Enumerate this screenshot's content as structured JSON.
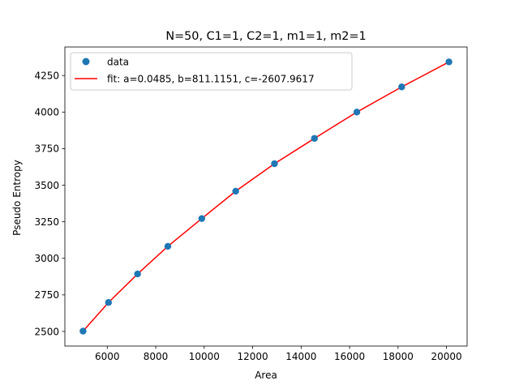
{
  "chart_data": {
    "type": "scatter",
    "title": "N=50, C1=1, C2=1, m1=1, m2=1",
    "xlabel": "Area",
    "ylabel": "Pseudo Entropy",
    "xlim": [
      4250,
      20850
    ],
    "ylim": [
      2400,
      4445
    ],
    "xticks": [
      6000,
      8000,
      10000,
      12000,
      14000,
      16000,
      18000,
      20000
    ],
    "yticks": [
      2500,
      2750,
      3000,
      3250,
      3500,
      3750,
      4000,
      4250
    ],
    "grid": false,
    "legend_position": "top-left",
    "series": [
      {
        "name": "data",
        "kind": "scatter",
        "color": "#1f77b4",
        "x": [
          5000,
          6050,
          7250,
          8500,
          9900,
          11300,
          12900,
          14550,
          16300,
          18150,
          20100
        ],
        "y": [
          2502,
          2698,
          2893,
          3082,
          3272,
          3459,
          3647,
          3820,
          4000,
          4172,
          4343
        ]
      },
      {
        "name": "fit: a=0.0485, b=811.1151, c=-2607.9617",
        "kind": "line",
        "color": "#ff0000",
        "x": [
          5000,
          6050,
          7250,
          8500,
          9900,
          11300,
          12900,
          14550,
          16300,
          18150,
          20100
        ],
        "y": [
          2502,
          2698,
          2893,
          3082,
          3272,
          3459,
          3647,
          3820,
          4000,
          4172,
          4343
        ]
      }
    ]
  }
}
